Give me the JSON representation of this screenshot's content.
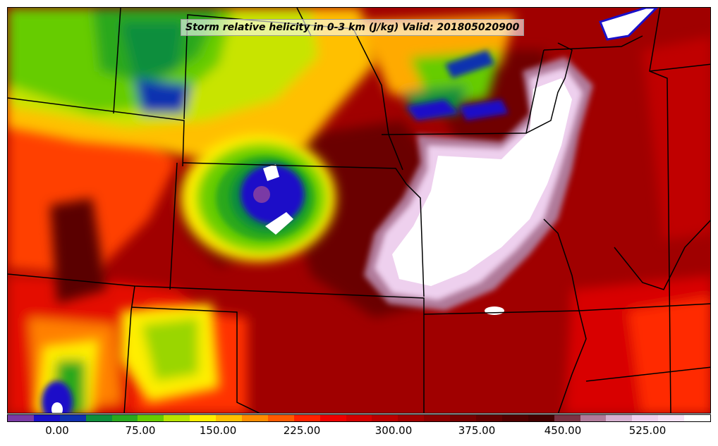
{
  "title": "Storm relative helicity in 0-3 km (J/kg) Valid: 201805020900",
  "colorbar": {
    "colors": [
      "#7a3aa5",
      "#1a10c8",
      "#1030b0",
      "#0f8e3c",
      "#2aa81e",
      "#66cc00",
      "#b8e400",
      "#ffee00",
      "#ffc000",
      "#ff8c00",
      "#ff5a00",
      "#ff2200",
      "#ee0000",
      "#d40000",
      "#bb0000",
      "#a20000",
      "#8c0000",
      "#780000",
      "#640000",
      "#520000",
      "#440000",
      "#7a3344",
      "#b07a9a",
      "#d6b0d0",
      "#eed0ee",
      "#f6e2f6",
      "#ffffff"
    ],
    "tick_labels": [
      "0.00",
      "75.00",
      "150.00",
      "225.00",
      "300.00",
      "375.00",
      "450.00",
      "525.00"
    ]
  },
  "colors": {
    "background": "#8b0000",
    "borders": "#000000"
  }
}
